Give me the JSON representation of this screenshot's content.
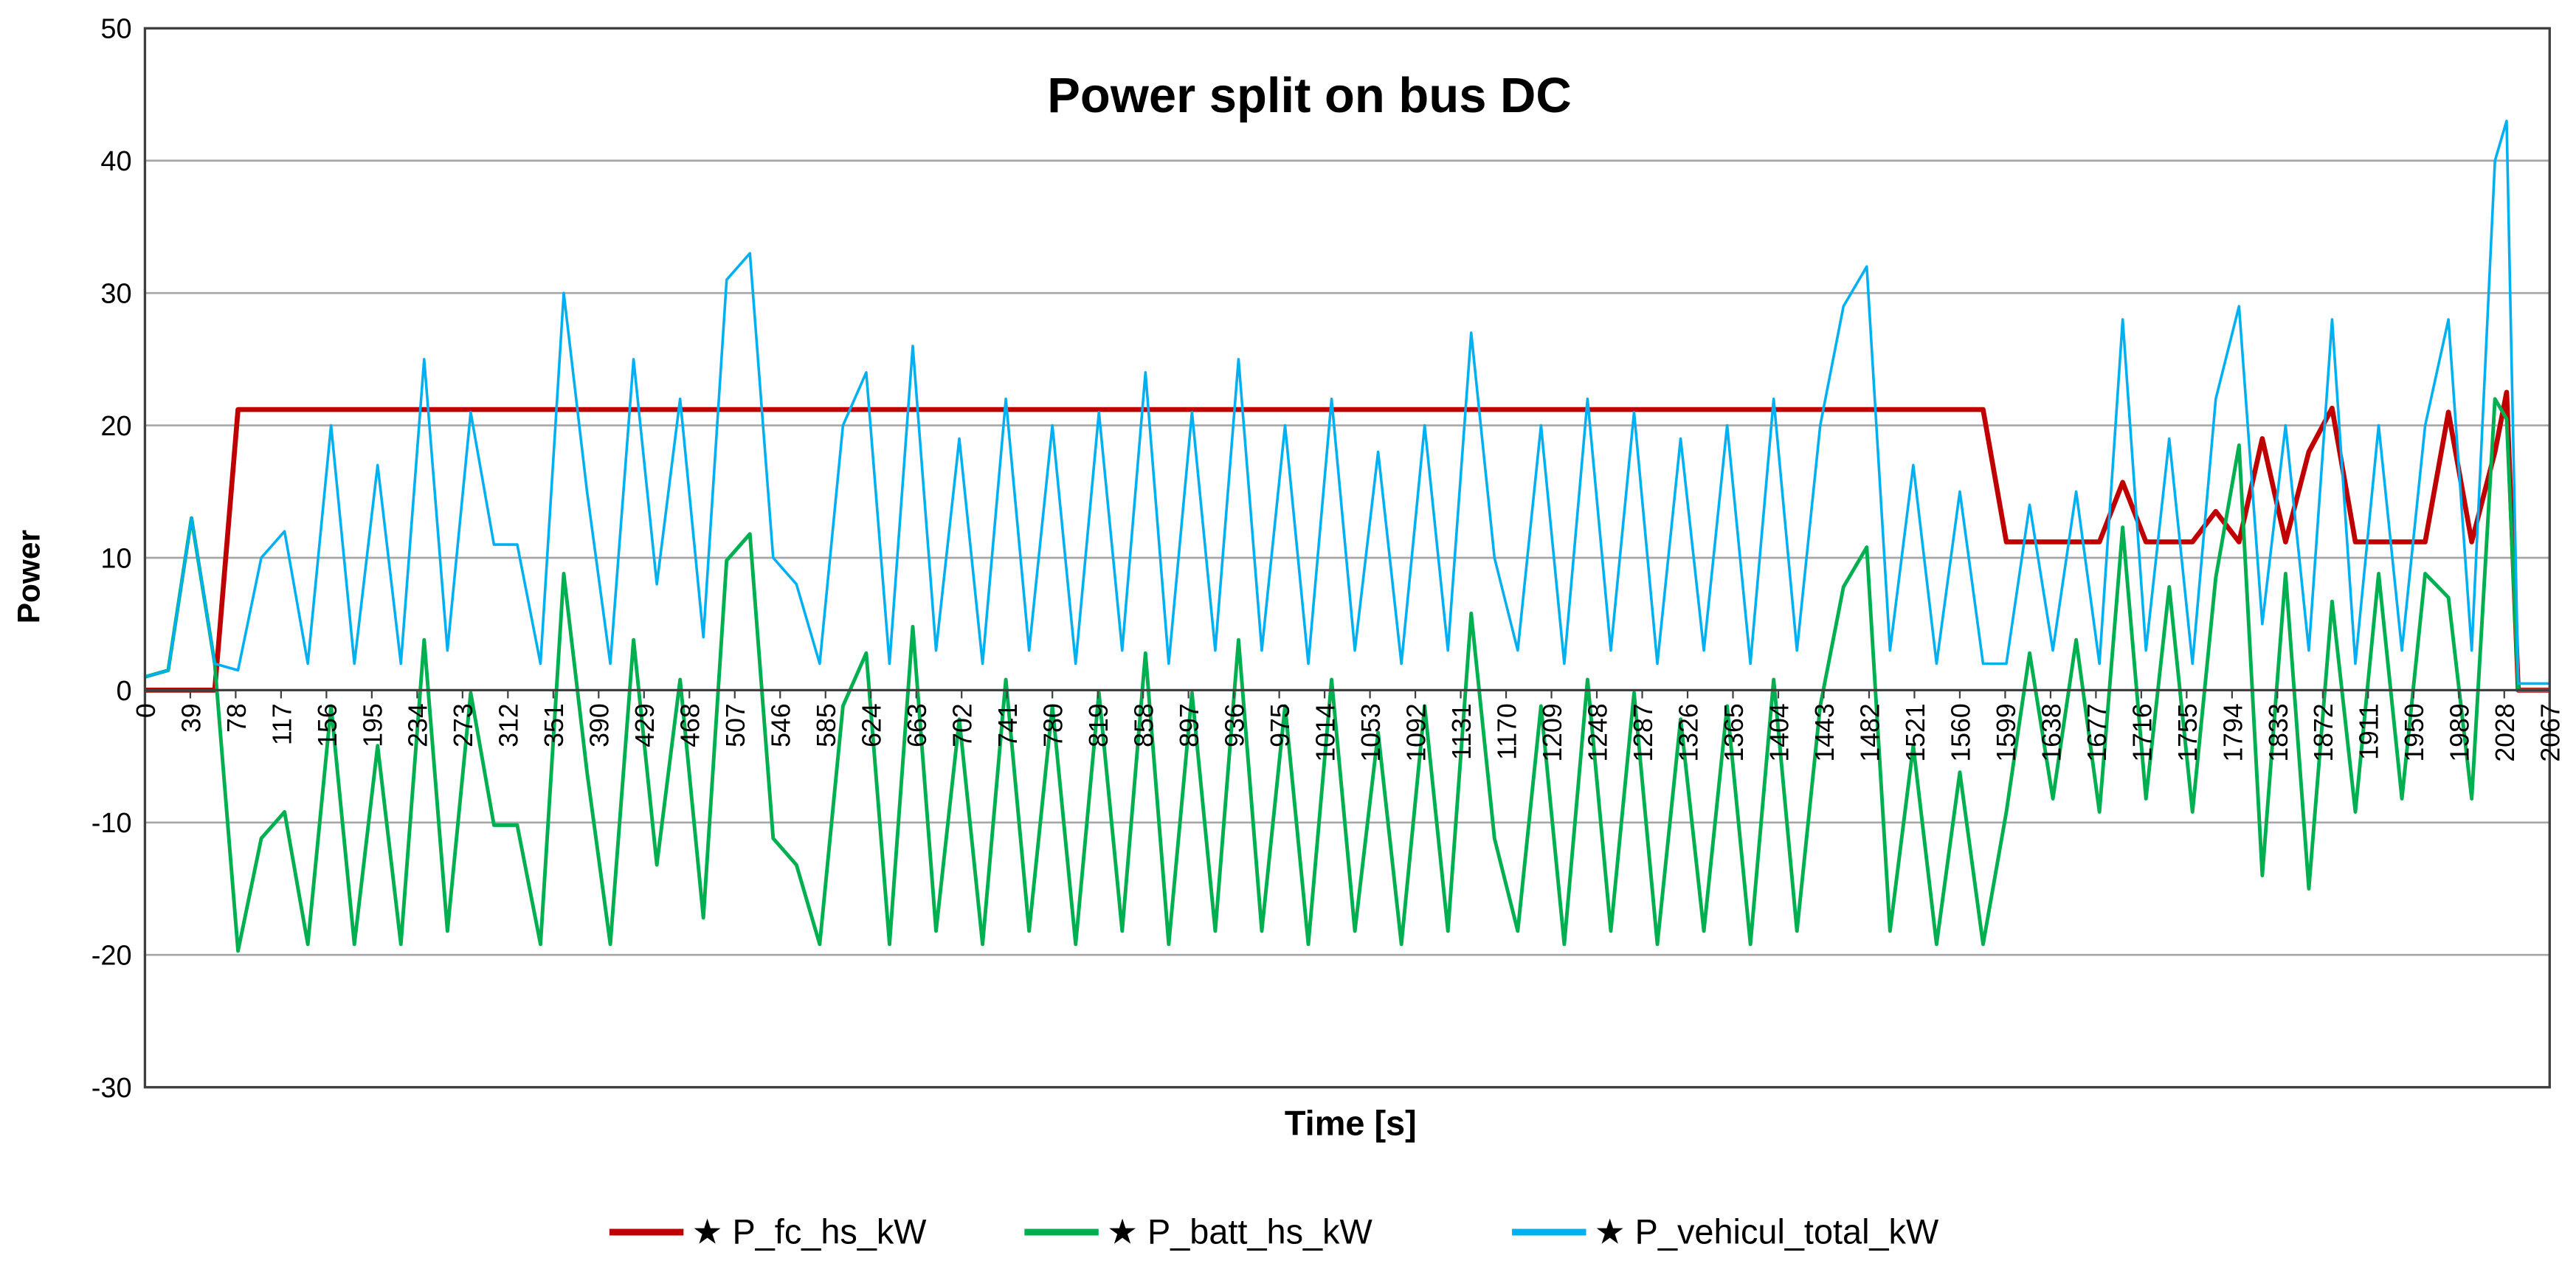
{
  "chart_data": {
    "type": "line",
    "title": "Power split on bus DC",
    "xlabel": "Time [s]",
    "ylabel": "Power",
    "xlim": [
      0,
      2067
    ],
    "ylim": [
      -30,
      50
    ],
    "yticks": [
      -30,
      -20,
      -10,
      0,
      10,
      20,
      30,
      40,
      50
    ],
    "xticks": [
      0,
      39,
      78,
      117,
      156,
      195,
      234,
      273,
      312,
      351,
      390,
      429,
      468,
      507,
      546,
      585,
      624,
      663,
      702,
      741,
      780,
      819,
      858,
      897,
      936,
      975,
      1014,
      1053,
      1092,
      1131,
      1170,
      1209,
      1248,
      1287,
      1326,
      1365,
      1404,
      1443,
      1482,
      1521,
      1560,
      1599,
      1638,
      1677,
      1716,
      1755,
      1794,
      1833,
      1872,
      1911,
      1950,
      1989,
      2028,
      2067
    ],
    "grid": true,
    "legend": "bottom",
    "x": [
      0,
      20,
      40,
      60,
      80,
      100,
      120,
      140,
      160,
      180,
      200,
      220,
      240,
      260,
      280,
      300,
      320,
      340,
      360,
      380,
      400,
      420,
      440,
      460,
      480,
      500,
      520,
      540,
      560,
      580,
      600,
      620,
      640,
      660,
      680,
      700,
      720,
      740,
      760,
      780,
      800,
      820,
      840,
      860,
      880,
      900,
      920,
      940,
      960,
      980,
      1000,
      1020,
      1040,
      1060,
      1080,
      1100,
      1120,
      1140,
      1160,
      1180,
      1200,
      1220,
      1240,
      1260,
      1280,
      1300,
      1320,
      1340,
      1360,
      1380,
      1400,
      1420,
      1440,
      1460,
      1480,
      1500,
      1520,
      1540,
      1560,
      1580,
      1600,
      1620,
      1640,
      1660,
      1680,
      1700,
      1720,
      1740,
      1760,
      1780,
      1800,
      1820,
      1840,
      1860,
      1880,
      1900,
      1920,
      1940,
      1960,
      1980,
      2000,
      2020,
      2030,
      2040,
      2060,
      2067
    ],
    "series": [
      {
        "name": "★ P_fc_hs_kW",
        "color": "#c00000",
        "values": [
          0,
          0,
          0,
          0,
          21.2,
          21.2,
          21.2,
          21.2,
          21.2,
          21.2,
          21.2,
          21.2,
          21.2,
          21.2,
          21.2,
          21.2,
          21.2,
          21.2,
          21.2,
          21.2,
          21.2,
          21.2,
          21.2,
          21.2,
          21.2,
          21.2,
          21.2,
          21.2,
          21.2,
          21.2,
          21.2,
          21.2,
          21.2,
          21.2,
          21.2,
          21.2,
          21.2,
          21.2,
          21.2,
          21.2,
          21.2,
          21.2,
          21.2,
          21.2,
          21.2,
          21.2,
          21.2,
          21.2,
          21.2,
          21.2,
          21.2,
          21.2,
          21.2,
          21.2,
          21.2,
          21.2,
          21.2,
          21.2,
          21.2,
          21.2,
          21.2,
          21.2,
          21.2,
          21.2,
          21.2,
          21.2,
          21.2,
          21.2,
          21.2,
          21.2,
          21.2,
          21.2,
          21.2,
          21.2,
          21.2,
          21.2,
          21.2,
          21.2,
          21.2,
          21.2,
          11.2,
          11.2,
          11.2,
          11.2,
          11.2,
          15.7,
          11.2,
          11.2,
          11.2,
          13.5,
          11.2,
          19,
          11.2,
          18,
          21.3,
          11.2,
          11.2,
          11.2,
          11.2,
          21,
          11.2,
          18,
          22.5,
          0,
          0,
          0
        ]
      },
      {
        "name": "★ P_batt_hs_kW",
        "color": "#00b050",
        "values": [
          1,
          1.5,
          13,
          2,
          -19.7,
          -11.2,
          -9.2,
          -19.2,
          -1.2,
          -19.2,
          -4.2,
          -19.2,
          3.8,
          -18.2,
          -0.2,
          -10.2,
          -10.2,
          -19.2,
          8.8,
          -6.2,
          -19.2,
          3.8,
          -13.2,
          0.8,
          -17.2,
          9.8,
          11.8,
          -11.2,
          -13.2,
          -19.2,
          -1.2,
          2.8,
          -19.2,
          4.8,
          -18.2,
          -2.2,
          -19.2,
          0.8,
          -18.2,
          -1.2,
          -19.2,
          -0.2,
          -18.2,
          2.8,
          -19.2,
          -0.2,
          -18.2,
          3.8,
          -18.2,
          -1.2,
          -19.2,
          0.8,
          -18.2,
          -3.2,
          -19.2,
          -1.2,
          -18.2,
          5.8,
          -11.2,
          -18.2,
          -1.2,
          -19.2,
          0.8,
          -18.2,
          -0.2,
          -19.2,
          -2.2,
          -18.2,
          -1.2,
          -19.2,
          0.8,
          -18.2,
          -1.2,
          7.8,
          10.8,
          -18.2,
          -4.2,
          -19.2,
          -6.2,
          -19.2,
          -9.2,
          2.8,
          -8.2,
          3.8,
          -9.2,
          12.3,
          -8.2,
          7.8,
          -9.2,
          8.5,
          18.5,
          -14,
          8.8,
          -15,
          6.7,
          -9.2,
          8.8,
          -8.2,
          8.8,
          7,
          -8.2,
          22,
          20.5,
          0,
          0,
          0
        ]
      },
      {
        "name": "★ P_vehicul_total_kW",
        "color": "#00b0f0",
        "values": [
          1,
          1.5,
          13,
          2,
          1.5,
          10,
          12,
          2,
          20,
          2,
          17,
          2,
          25,
          3,
          21,
          11,
          11,
          2,
          30,
          15,
          2,
          25,
          8,
          22,
          4,
          31,
          33,
          10,
          8,
          2,
          20,
          24,
          2,
          26,
          3,
          19,
          2,
          22,
          3,
          20,
          2,
          21,
          3,
          24,
          2,
          21,
          3,
          25,
          3,
          20,
          2,
          22,
          3,
          18,
          2,
          20,
          3,
          27,
          10,
          3,
          20,
          2,
          22,
          3,
          21,
          2,
          19,
          3,
          20,
          2,
          22,
          3,
          20,
          29,
          32,
          3,
          17,
          2,
          15,
          2,
          2,
          14,
          3,
          15,
          2,
          28,
          3,
          19,
          2,
          22,
          29,
          5,
          20,
          3,
          28,
          2,
          20,
          3,
          20,
          28,
          3,
          40,
          43,
          0.5,
          0.5,
          0.5
        ]
      }
    ]
  }
}
